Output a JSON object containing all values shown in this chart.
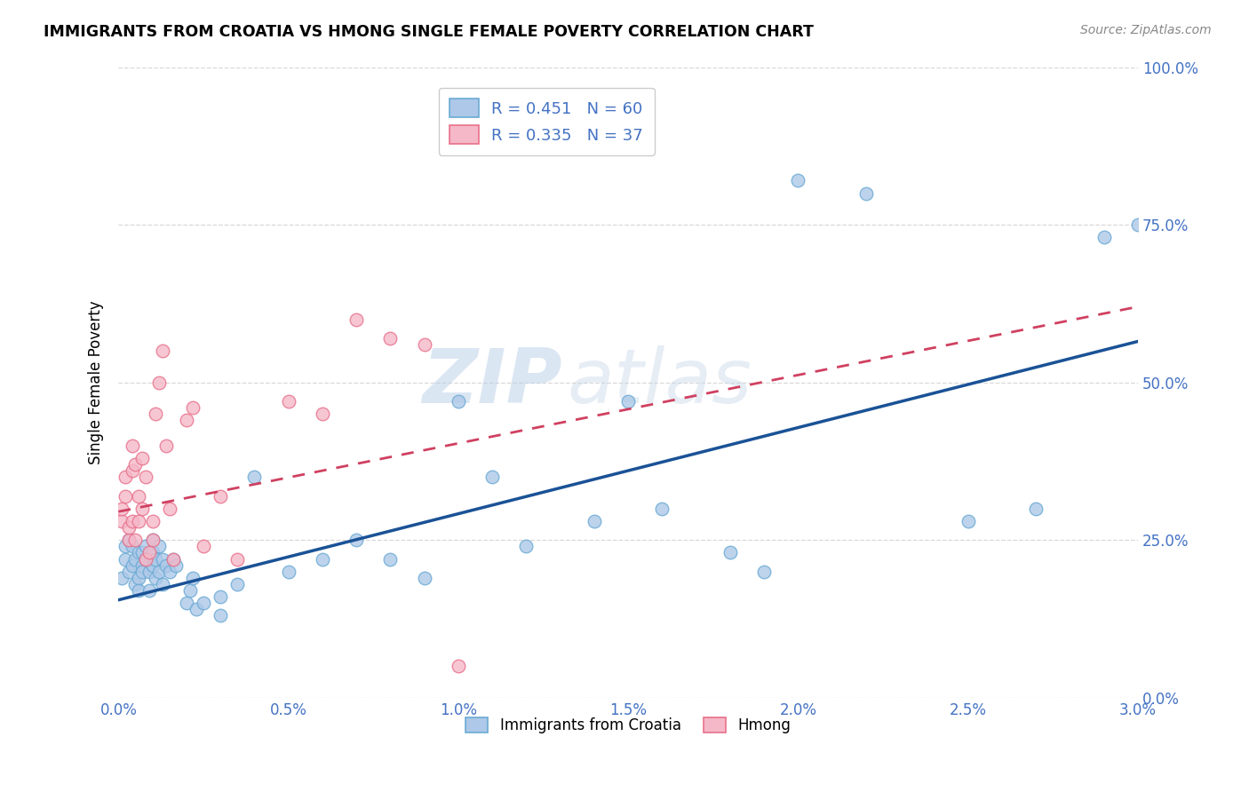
{
  "title": "IMMIGRANTS FROM CROATIA VS HMONG SINGLE FEMALE POVERTY CORRELATION CHART",
  "source": "Source: ZipAtlas.com",
  "ylabel_label": "Single Female Poverty",
  "x_min": 0.0,
  "x_max": 0.03,
  "y_min": 0.0,
  "y_max": 1.0,
  "x_ticks": [
    0.0,
    0.005,
    0.01,
    0.015,
    0.02,
    0.025,
    0.03
  ],
  "x_tick_labels": [
    "0.0%",
    "0.5%",
    "1.0%",
    "1.5%",
    "2.0%",
    "2.5%",
    "3.0%"
  ],
  "y_ticks": [
    0.0,
    0.25,
    0.5,
    0.75,
    1.0
  ],
  "y_tick_labels": [
    "0.0%",
    "25.0%",
    "50.0%",
    "75.0%",
    "100.0%"
  ],
  "blue_color": "#adc8e8",
  "blue_edge_color": "#6aaad4",
  "pink_color": "#f5b8c8",
  "pink_edge_color": "#e8708a",
  "line_blue": "#1a5296",
  "line_pink": "#d04060",
  "tick_color": "#4472c4",
  "legend_R_blue": "R = 0.451",
  "legend_N_blue": "N = 60",
  "legend_R_pink": "R = 0.335",
  "legend_N_pink": "N = 37",
  "legend_label_blue": "Immigrants from Croatia",
  "legend_label_pink": "Hmong",
  "watermark_zip": "ZIP",
  "watermark_atlas": "atlas",
  "grid_color": "#d8d8d8",
  "blue_scatter_x": [
    0.0001,
    0.0002,
    0.0002,
    0.0003,
    0.0003,
    0.0004,
    0.0004,
    0.0005,
    0.0005,
    0.0006,
    0.0006,
    0.0006,
    0.0007,
    0.0007,
    0.0007,
    0.0008,
    0.0008,
    0.0009,
    0.0009,
    0.001,
    0.001,
    0.001,
    0.0011,
    0.0011,
    0.0012,
    0.0012,
    0.0013,
    0.0013,
    0.0014,
    0.0015,
    0.0016,
    0.0017,
    0.002,
    0.0021,
    0.0022,
    0.0023,
    0.0025,
    0.003,
    0.003,
    0.0035,
    0.004,
    0.005,
    0.006,
    0.007,
    0.008,
    0.009,
    0.01,
    0.011,
    0.012,
    0.014,
    0.015,
    0.016,
    0.018,
    0.019,
    0.02,
    0.022,
    0.025,
    0.027,
    0.029,
    0.03
  ],
  "blue_scatter_y": [
    0.19,
    0.22,
    0.24,
    0.2,
    0.25,
    0.21,
    0.24,
    0.22,
    0.18,
    0.23,
    0.19,
    0.17,
    0.21,
    0.23,
    0.2,
    0.24,
    0.22,
    0.2,
    0.17,
    0.23,
    0.25,
    0.21,
    0.22,
    0.19,
    0.24,
    0.2,
    0.22,
    0.18,
    0.21,
    0.2,
    0.22,
    0.21,
    0.15,
    0.17,
    0.19,
    0.14,
    0.15,
    0.16,
    0.13,
    0.18,
    0.35,
    0.2,
    0.22,
    0.25,
    0.22,
    0.19,
    0.47,
    0.35,
    0.24,
    0.28,
    0.47,
    0.3,
    0.23,
    0.2,
    0.82,
    0.8,
    0.28,
    0.3,
    0.73,
    0.75
  ],
  "pink_scatter_x": [
    0.0001,
    0.0001,
    0.0002,
    0.0002,
    0.0003,
    0.0003,
    0.0004,
    0.0004,
    0.0004,
    0.0005,
    0.0005,
    0.0006,
    0.0006,
    0.0007,
    0.0007,
    0.0008,
    0.0008,
    0.0009,
    0.001,
    0.001,
    0.0011,
    0.0012,
    0.0013,
    0.0014,
    0.0015,
    0.0016,
    0.002,
    0.0022,
    0.0025,
    0.003,
    0.0035,
    0.005,
    0.006,
    0.007,
    0.008,
    0.009,
    0.01
  ],
  "pink_scatter_y": [
    0.28,
    0.3,
    0.32,
    0.35,
    0.25,
    0.27,
    0.36,
    0.28,
    0.4,
    0.37,
    0.25,
    0.32,
    0.28,
    0.3,
    0.38,
    0.22,
    0.35,
    0.23,
    0.25,
    0.28,
    0.45,
    0.5,
    0.55,
    0.4,
    0.3,
    0.22,
    0.44,
    0.46,
    0.24,
    0.32,
    0.22,
    0.47,
    0.45,
    0.6,
    0.57,
    0.56,
    0.05
  ],
  "blue_line_x0": 0.0,
  "blue_line_x1": 0.03,
  "blue_line_y0": 0.155,
  "blue_line_y1": 0.565,
  "pink_line_x0": 0.0,
  "pink_line_x1": 0.03,
  "pink_line_y0": 0.295,
  "pink_line_y1": 0.62
}
